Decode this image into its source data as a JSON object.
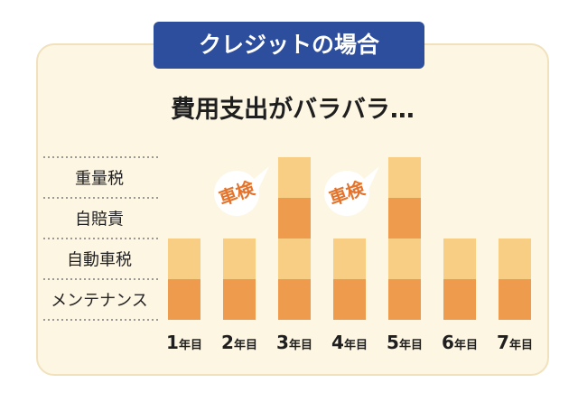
{
  "header": {
    "badge_text": "クレジットの場合"
  },
  "headline": "費用支出がバラバラ…",
  "colors": {
    "panel": "#fdf6e3",
    "badge": "#2d4d9d",
    "light": "#f8cd84",
    "dark": "#ef9b4d",
    "callout_text": "#e3742d",
    "row_divider": "#7a7a7a"
  },
  "chart_data": {
    "type": "bar",
    "stacked": true,
    "categories": [
      "1年目",
      "2年目",
      "3年目",
      "4年目",
      "5年目",
      "6年目",
      "7年目"
    ],
    "row_labels": [
      "重量税",
      "自賠責",
      "自動車税",
      "メンテナンス"
    ],
    "series": [
      {
        "name": "メンテナンス",
        "color": "#ef9b4d",
        "values": [
          1,
          1,
          1,
          1,
          1,
          1,
          1
        ]
      },
      {
        "name": "自動車税",
        "color": "#f8cd84",
        "values": [
          1,
          1,
          1,
          1,
          1,
          1,
          1
        ]
      },
      {
        "name": "自賠責",
        "color": "#ef9b4d",
        "values": [
          0,
          0,
          1,
          0,
          1,
          0,
          0
        ]
      },
      {
        "name": "重量税",
        "color": "#f8cd84",
        "values": [
          0,
          0,
          1,
          0,
          1,
          0,
          0
        ]
      }
    ],
    "callouts": [
      {
        "category": "3年目",
        "text": "車検"
      },
      {
        "category": "5年目",
        "text": "車検"
      }
    ]
  }
}
